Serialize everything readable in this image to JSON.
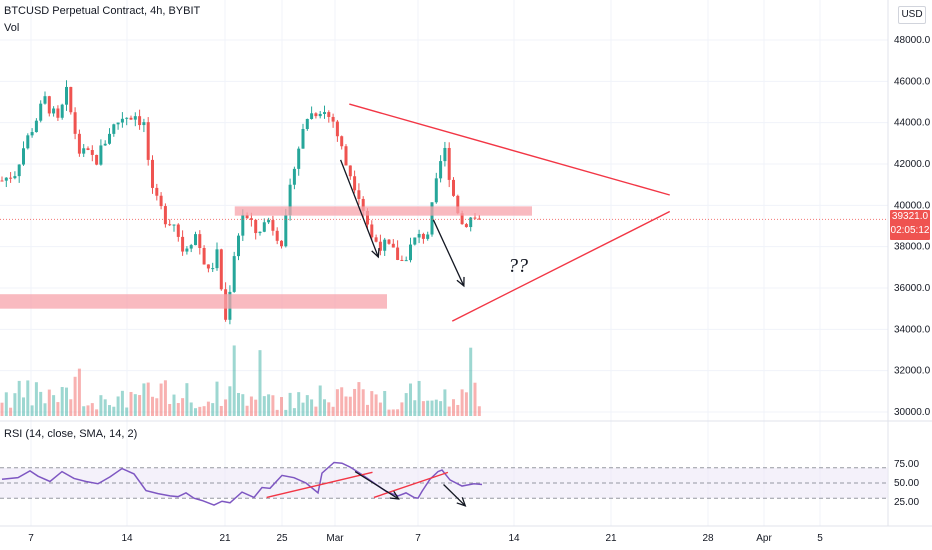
{
  "header": {
    "title": "BTCUSD Perpetual Contract, 4h, BYBIT",
    "vol_label": "Vol",
    "currency": "USD"
  },
  "price_tag": {
    "value": "39321.0",
    "countdown": "02:05:12"
  },
  "rsi": {
    "label": "RSI (14, close, SMA, 14, 2)"
  },
  "annotation": {
    "text": "??"
  },
  "colors": {
    "up": "#26a69a",
    "down": "#ef5350",
    "trendline": "#f23645",
    "zone": "#f7a3ab",
    "rsi": "#7e57c2",
    "rsi_band": "#ede7f6"
  },
  "chart_data": [
    {
      "type": "candlestick",
      "title": "BTCUSD Perpetual Contract, 4h, BYBIT",
      "x_tick_labels": [
        "7",
        "14",
        "21",
        "25",
        "Mar",
        "7",
        "14",
        "21",
        "28",
        "Apr",
        "5"
      ],
      "y_tick_labels": [
        "48000.0",
        "46000.0",
        "44000.0",
        "42000.0",
        "40000.0",
        "38000.0",
        "36000.0",
        "34000.0",
        "32000.0",
        "30000.0"
      ],
      "ylim": [
        29500,
        50000
      ],
      "last_price": 39321.0,
      "price_anchors": [
        [
          0,
          41200
        ],
        [
          3,
          41600
        ],
        [
          5,
          42800
        ],
        [
          8,
          44200
        ],
        [
          10,
          45100
        ],
        [
          13,
          44000
        ],
        [
          15,
          45400
        ],
        [
          18,
          42600
        ],
        [
          22,
          42200
        ],
        [
          25,
          43600
        ],
        [
          28,
          44300
        ],
        [
          31,
          44400
        ],
        [
          33,
          43900
        ],
        [
          35,
          40500
        ],
        [
          38,
          39400
        ],
        [
          40,
          39200
        ],
        [
          42,
          37900
        ],
        [
          45,
          38600
        ],
        [
          48,
          36700
        ],
        [
          50,
          37600
        ],
        [
          52,
          34400
        ],
        [
          54,
          37700
        ],
        [
          56,
          39600
        ],
        [
          59,
          38700
        ],
        [
          62,
          39300
        ],
        [
          65,
          38300
        ],
        [
          66,
          39200
        ],
        [
          68,
          42100
        ],
        [
          71,
          44300
        ],
        [
          74,
          44700
        ],
        [
          77,
          44100
        ],
        [
          80,
          42000
        ],
        [
          83,
          40600
        ],
        [
          86,
          38400
        ],
        [
          90,
          37900
        ],
        [
          93,
          37300
        ],
        [
          96,
          38300
        ],
        [
          99,
          38700
        ],
        [
          102,
          42100
        ],
        [
          103,
          42600
        ],
        [
          105,
          40500
        ],
        [
          107,
          39100
        ],
        [
          109,
          39400
        ],
        [
          111,
          39321
        ]
      ],
      "zones": [
        {
          "low": 39500,
          "high": 39950,
          "from_day": 15.5,
          "to_day": 36
        },
        {
          "low": 35000,
          "high": 35700,
          "from_day": -5,
          "to_day": 26
        }
      ],
      "trendlines": [
        {
          "from": [
            30.5,
            34400
          ],
          "to": [
            45.5,
            39700
          ]
        },
        {
          "from": [
            23.4,
            44900
          ],
          "to": [
            45.5,
            40500
          ]
        }
      ],
      "arrows": [
        {
          "from": [
            22.8,
            42200
          ],
          "to": [
            25.4,
            37500
          ]
        },
        {
          "from": [
            29.2,
            39300
          ],
          "to": [
            31.3,
            36100
          ]
        }
      ]
    },
    {
      "type": "bar",
      "title": "Vol",
      "note": "volume histogram beneath price"
    },
    {
      "type": "line",
      "title": "RSI (14, close, SMA, 14, 2)",
      "y_tick_labels": [
        "75.00",
        "50.00",
        "25.00"
      ],
      "ylim": [
        5,
        85
      ],
      "band": [
        30,
        70
      ],
      "anchors": [
        [
          0,
          55
        ],
        [
          4,
          57
        ],
        [
          7,
          66
        ],
        [
          9,
          59
        ],
        [
          12,
          52
        ],
        [
          15,
          65
        ],
        [
          18,
          56
        ],
        [
          21,
          52
        ],
        [
          24,
          49
        ],
        [
          27,
          58
        ],
        [
          30,
          69
        ],
        [
          33,
          62
        ],
        [
          36,
          40
        ],
        [
          39,
          36
        ],
        [
          42,
          33
        ],
        [
          44,
          32
        ],
        [
          46,
          37
        ],
        [
          48,
          30
        ],
        [
          50,
          27
        ],
        [
          53,
          21
        ],
        [
          55,
          26
        ],
        [
          57,
          24
        ],
        [
          60,
          38
        ],
        [
          63,
          31
        ],
        [
          65,
          44
        ],
        [
          67,
          43
        ],
        [
          70,
          60
        ],
        [
          73,
          57
        ],
        [
          76,
          50
        ],
        [
          79,
          37
        ],
        [
          80,
          63
        ],
        [
          83,
          77
        ],
        [
          85,
          76
        ],
        [
          87,
          71
        ],
        [
          90,
          61
        ],
        [
          93,
          50
        ],
        [
          96,
          39
        ],
        [
          99,
          33
        ],
        [
          101,
          37
        ],
        [
          103,
          31
        ],
        [
          104,
          30
        ],
        [
          105,
          39
        ],
        [
          107,
          55
        ],
        [
          109,
          65
        ],
        [
          110,
          67
        ],
        [
          112,
          54
        ],
        [
          115,
          46
        ],
        [
          118,
          49
        ],
        [
          120,
          48
        ]
      ],
      "trendlines": [
        {
          "from": [
            17.7,
            31
          ],
          "to": [
            25.0,
            64
          ]
        },
        {
          "from": [
            25.1,
            31
          ],
          "to": [
            30.2,
            64
          ]
        }
      ],
      "arrows": [
        {
          "from": [
            23.8,
            65
          ],
          "to": [
            26.8,
            29
          ]
        },
        {
          "from": [
            29.9,
            48
          ],
          "to": [
            31.4,
            20
          ]
        }
      ]
    }
  ]
}
